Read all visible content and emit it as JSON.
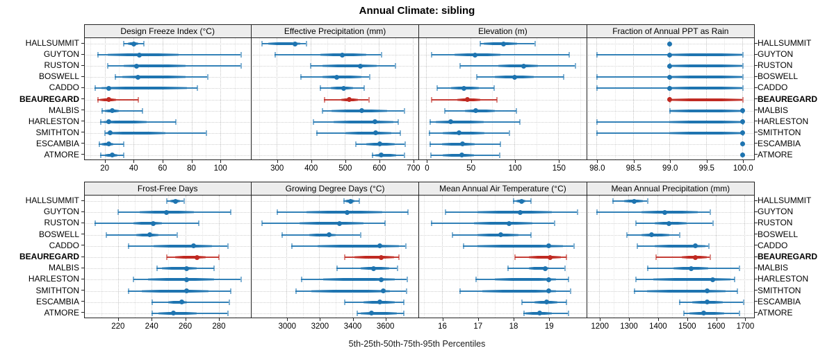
{
  "colors": {
    "series": "#1e74b0",
    "highlight": "#c02a22",
    "strip_bg": "#ededed",
    "grid": "#c4c4c4"
  },
  "chart_data": {
    "type": "scatter",
    "subtype": "trellis horizontal percentile dotplot (5-25-50-75-95), whisker + band + median dot",
    "title": "Annual Climate: sibling",
    "footer": "5th-25th-50th-75th-95th Percentiles",
    "legend_position": "none",
    "grid": "dotted major verticals + dotted row guides",
    "highlight": "BEAUREGARD",
    "categories": [
      "HALLSUMMIT",
      "GUYTON",
      "RUSTON",
      "BOSWELL",
      "CADDO",
      "BEAUREGARD",
      "MALBIS",
      "HARLESTON",
      "SMITHTON",
      "ESCAMBIA",
      "ATMORE"
    ],
    "panels": [
      {
        "title": "Design Freeze Index (°C)",
        "xlim": [
          6,
          121
        ],
        "ticks": [
          20,
          40,
          60,
          80,
          100
        ],
        "tick_labels": [
          "20",
          "40",
          "60",
          "80",
          "100"
        ],
        "series": [
          [
            33,
            36,
            40,
            43,
            47
          ],
          [
            15,
            22,
            44,
            71,
            114
          ],
          [
            22,
            33,
            42,
            76,
            114
          ],
          [
            27,
            32,
            43,
            76,
            91
          ],
          [
            13,
            18,
            23,
            77,
            84
          ],
          [
            15,
            17,
            23,
            28,
            43
          ],
          [
            18,
            20,
            25,
            30,
            46
          ],
          [
            17,
            19,
            23,
            49,
            69
          ],
          [
            20,
            21,
            24,
            62,
            90
          ],
          [
            16,
            18,
            23,
            26,
            33
          ],
          [
            17,
            20,
            25,
            29,
            33
          ]
        ]
      },
      {
        "title": "Effective Precipitation (mm)",
        "xlim": [
          227,
          715
        ],
        "ticks": [
          300,
          400,
          500,
          600,
          700
        ],
        "tick_labels": [
          "300",
          "400",
          "500",
          "600",
          "700"
        ],
        "series": [
          [
            257,
            277,
            355,
            371,
            387
          ],
          [
            295,
            430,
            493,
            563,
            607
          ],
          [
            400,
            436,
            547,
            594,
            648
          ],
          [
            370,
            435,
            478,
            550,
            572
          ],
          [
            428,
            460,
            497,
            524,
            557
          ],
          [
            440,
            490,
            513,
            540,
            570
          ],
          [
            435,
            462,
            550,
            624,
            674
          ],
          [
            408,
            468,
            590,
            644,
            657
          ],
          [
            417,
            503,
            592,
            637,
            663
          ],
          [
            533,
            563,
            604,
            648,
            676
          ],
          [
            580,
            590,
            607,
            651,
            674
          ]
        ]
      },
      {
        "title": "Elevation (m)",
        "xlim": [
          -8,
          181
        ],
        "ticks": [
          0,
          50,
          100,
          150
        ],
        "tick_labels": [
          "0",
          "50",
          "100",
          "150"
        ],
        "series": [
          [
            61,
            65,
            88,
            103,
            123
          ],
          [
            6,
            32,
            55,
            84,
            162
          ],
          [
            38,
            82,
            111,
            127,
            169
          ],
          [
            57,
            78,
            100,
            122,
            156
          ],
          [
            12,
            28,
            43,
            60,
            77
          ],
          [
            6,
            35,
            47,
            61,
            80
          ],
          [
            21,
            44,
            56,
            78,
            102
          ],
          [
            4,
            11,
            28,
            65,
            106
          ],
          [
            3,
            19,
            37,
            66,
            94
          ],
          [
            4,
            18,
            41,
            55,
            84
          ],
          [
            5,
            19,
            40,
            54,
            83
          ]
        ]
      },
      {
        "title": "Fraction of Annual PPT as Rain",
        "xlim": [
          97.87,
          100.15
        ],
        "ticks": [
          98.0,
          98.5,
          99.0,
          99.5,
          100.0
        ],
        "tick_labels": [
          "98.0",
          "98.5",
          "99.0",
          "99.5",
          "100.0"
        ],
        "series": [
          [
            99,
            99,
            99,
            99,
            99
          ],
          [
            98,
            99,
            99,
            100,
            100
          ],
          [
            99,
            99,
            99,
            100,
            100
          ],
          [
            98,
            99,
            99,
            100,
            100
          ],
          [
            98,
            99,
            99,
            100,
            100
          ],
          [
            99,
            99,
            99,
            100,
            100
          ],
          [
            99,
            99,
            100,
            100,
            100
          ],
          [
            98,
            99,
            100,
            100,
            100
          ],
          [
            98,
            99,
            100,
            100,
            100
          ],
          [
            100,
            100,
            100,
            100,
            100
          ],
          [
            100,
            100,
            100,
            100,
            100
          ]
        ]
      },
      {
        "title": "Frost-Free Days",
        "xlim": [
          200,
          299
        ],
        "ticks": [
          220,
          240,
          260,
          280
        ],
        "tick_labels": [
          "220",
          "240",
          "260",
          "280"
        ],
        "series": [
          [
            249,
            251,
            254,
            257,
            259
          ],
          [
            220,
            233,
            249,
            265,
            287
          ],
          [
            206,
            229,
            241,
            246,
            268
          ],
          [
            213,
            231,
            239,
            244,
            255
          ],
          [
            226,
            241,
            265,
            276,
            285
          ],
          [
            249,
            254,
            267,
            272,
            280
          ],
          [
            243,
            246,
            261,
            267,
            277
          ],
          [
            229,
            238,
            261,
            277,
            293
          ],
          [
            226,
            234,
            261,
            274,
            287
          ],
          [
            240,
            250,
            258,
            261,
            286
          ],
          [
            240,
            244,
            253,
            267,
            285
          ]
        ]
      },
      {
        "title": "Growing Degree Days (°C)",
        "xlim": [
          2786,
          3802
        ],
        "ticks": [
          3000,
          3200,
          3400,
          3600
        ],
        "tick_labels": [
          "3000",
          "3200",
          "3400",
          "3600"
        ],
        "series": [
          [
            3348,
            3360,
            3390,
            3415,
            3443
          ],
          [
            2940,
            3120,
            3370,
            3585,
            3740
          ],
          [
            2850,
            3080,
            3325,
            3470,
            3600
          ],
          [
            2970,
            3140,
            3260,
            3300,
            3450
          ],
          [
            3030,
            3190,
            3570,
            3685,
            3725
          ],
          [
            3355,
            3415,
            3580,
            3655,
            3685
          ],
          [
            3305,
            3455,
            3530,
            3625,
            3675
          ],
          [
            3090,
            3225,
            3580,
            3660,
            3735
          ],
          [
            3055,
            3150,
            3590,
            3630,
            3730
          ],
          [
            3355,
            3470,
            3570,
            3660,
            3715
          ],
          [
            3430,
            3455,
            3520,
            3675,
            3715
          ]
        ]
      },
      {
        "title": "Mean Annual Air Temperature (°C)",
        "xlim": [
          15.37,
          20.04
        ],
        "ticks": [
          16,
          17,
          18,
          19
        ],
        "tick_labels": [
          "16",
          "17",
          "18",
          "19"
        ],
        "series": [
          [
            18.0,
            18.1,
            18.25,
            18.35,
            18.5
          ],
          [
            16.1,
            17.0,
            18.2,
            19.1,
            19.8
          ],
          [
            15.7,
            16.9,
            17.9,
            18.55,
            19.15
          ],
          [
            16.3,
            17.0,
            17.65,
            18.15,
            18.5
          ],
          [
            16.6,
            17.0,
            19.0,
            19.4,
            19.7
          ],
          [
            18.05,
            18.45,
            19.05,
            19.35,
            19.5
          ],
          [
            17.85,
            18.45,
            18.9,
            19.0,
            19.45
          ],
          [
            16.95,
            17.5,
            19.0,
            19.2,
            19.55
          ],
          [
            16.5,
            17.15,
            19.0,
            19.2,
            19.6
          ],
          [
            18.25,
            18.6,
            18.95,
            19.25,
            19.5
          ],
          [
            18.3,
            18.35,
            18.75,
            19.1,
            19.55
          ]
        ]
      },
      {
        "title": "Mean Annual Precipitation (mm)",
        "xlim": [
          1158,
          1730
        ],
        "ticks": [
          1200,
          1300,
          1400,
          1500,
          1600,
          1700
        ],
        "tick_labels": [
          "1200",
          "1300",
          "1400",
          "1500",
          "1600",
          "1700"
        ],
        "series": [
          [
            1245,
            1285,
            1320,
            1350,
            1365
          ],
          [
            1190,
            1345,
            1425,
            1540,
            1580
          ],
          [
            1325,
            1390,
            1440,
            1500,
            1590
          ],
          [
            1295,
            1345,
            1380,
            1440,
            1475
          ],
          [
            1330,
            1390,
            1530,
            1565,
            1575
          ],
          [
            1395,
            1485,
            1530,
            1570,
            1580
          ],
          [
            1365,
            1455,
            1515,
            1575,
            1680
          ],
          [
            1325,
            1385,
            1590,
            1650,
            1665
          ],
          [
            1320,
            1365,
            1570,
            1635,
            1675
          ],
          [
            1475,
            1520,
            1570,
            1625,
            1695
          ],
          [
            1490,
            1510,
            1560,
            1630,
            1680
          ]
        ]
      }
    ]
  }
}
